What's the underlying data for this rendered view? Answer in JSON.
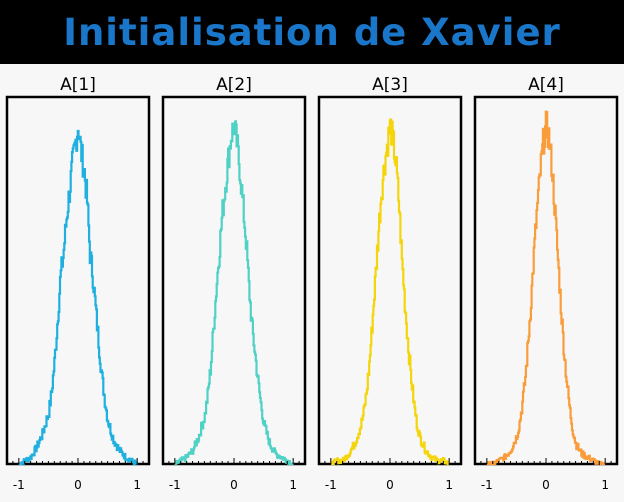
{
  "header": {
    "title": "Initialisation de Xavier"
  },
  "chart_data": [
    {
      "type": "line",
      "title": "A[1]",
      "color": "#1fb0e0",
      "xlim": [
        -1.2,
        1.2
      ],
      "xticks": [
        -1,
        0,
        1
      ],
      "xticklabels": [
        "-1",
        "0",
        "1"
      ],
      "x": [
        -1.0,
        -0.9,
        -0.8,
        -0.7,
        -0.6,
        -0.5,
        -0.45,
        -0.4,
        -0.35,
        -0.3,
        -0.25,
        -0.2,
        -0.15,
        -0.1,
        -0.05,
        0.0,
        0.05,
        0.1,
        0.15,
        0.2,
        0.25,
        0.3,
        0.35,
        0.4,
        0.45,
        0.5,
        0.6,
        0.7,
        0.8,
        0.9,
        1.0
      ],
      "y": [
        0.0,
        0.01,
        0.02,
        0.05,
        0.09,
        0.15,
        0.21,
        0.3,
        0.42,
        0.55,
        0.62,
        0.72,
        0.8,
        0.88,
        0.94,
        1.0,
        0.92,
        0.87,
        0.78,
        0.62,
        0.55,
        0.45,
        0.35,
        0.26,
        0.19,
        0.13,
        0.07,
        0.04,
        0.02,
        0.01,
        0.0
      ]
    },
    {
      "type": "line",
      "title": "A[2]",
      "color": "#4fd1c5",
      "xlim": [
        -1.2,
        1.2
      ],
      "xticks": [
        -1,
        0,
        1
      ],
      "xticklabels": [
        "-1",
        "0",
        "1"
      ],
      "x": [
        -1.0,
        -0.9,
        -0.8,
        -0.7,
        -0.6,
        -0.5,
        -0.45,
        -0.4,
        -0.35,
        -0.3,
        -0.25,
        -0.2,
        -0.15,
        -0.1,
        -0.05,
        0.0,
        0.05,
        0.1,
        0.15,
        0.2,
        0.25,
        0.3,
        0.35,
        0.4,
        0.45,
        0.5,
        0.6,
        0.7,
        0.8,
        0.9,
        1.0
      ],
      "y": [
        0.0,
        0.01,
        0.02,
        0.04,
        0.08,
        0.14,
        0.2,
        0.28,
        0.4,
        0.52,
        0.63,
        0.74,
        0.82,
        0.9,
        0.97,
        1.0,
        0.94,
        0.86,
        0.76,
        0.66,
        0.52,
        0.41,
        0.33,
        0.25,
        0.18,
        0.12,
        0.06,
        0.03,
        0.02,
        0.01,
        0.0
      ]
    },
    {
      "type": "line",
      "title": "A[3]",
      "color": "#f4d50b",
      "xlim": [
        -1.2,
        1.2
      ],
      "xticks": [
        -1,
        0,
        1
      ],
      "xticklabels": [
        "-1",
        "0",
        "1"
      ],
      "x": [
        -1.0,
        -0.9,
        -0.8,
        -0.7,
        -0.6,
        -0.5,
        -0.45,
        -0.4,
        -0.35,
        -0.3,
        -0.25,
        -0.2,
        -0.15,
        -0.1,
        -0.05,
        0.0,
        0.05,
        0.1,
        0.15,
        0.2,
        0.25,
        0.3,
        0.35,
        0.4,
        0.45,
        0.5,
        0.6,
        0.7,
        0.8,
        0.9,
        1.0
      ],
      "y": [
        0.0,
        0.01,
        0.01,
        0.03,
        0.06,
        0.11,
        0.15,
        0.21,
        0.3,
        0.42,
        0.55,
        0.68,
        0.8,
        0.88,
        0.94,
        1.0,
        0.95,
        0.88,
        0.76,
        0.6,
        0.47,
        0.36,
        0.26,
        0.18,
        0.12,
        0.08,
        0.04,
        0.02,
        0.01,
        0.01,
        0.0
      ]
    },
    {
      "type": "line",
      "title": "A[4]",
      "color": "#f99d3b",
      "xlim": [
        -1.2,
        1.2
      ],
      "xticks": [
        -1,
        0,
        1
      ],
      "xticklabels": [
        "-1",
        "0",
        "1"
      ],
      "x": [
        -1.0,
        -0.9,
        -0.8,
        -0.7,
        -0.6,
        -0.5,
        -0.45,
        -0.4,
        -0.35,
        -0.3,
        -0.25,
        -0.2,
        -0.15,
        -0.1,
        -0.05,
        0.0,
        0.05,
        0.1,
        0.15,
        0.2,
        0.25,
        0.3,
        0.35,
        0.4,
        0.45,
        0.5,
        0.6,
        0.7,
        0.8,
        0.9,
        1.0
      ],
      "y": [
        0.0,
        0.0,
        0.01,
        0.02,
        0.04,
        0.08,
        0.12,
        0.18,
        0.26,
        0.37,
        0.5,
        0.64,
        0.76,
        0.86,
        0.95,
        1.0,
        0.96,
        0.87,
        0.74,
        0.6,
        0.46,
        0.34,
        0.24,
        0.16,
        0.1,
        0.06,
        0.03,
        0.02,
        0.01,
        0.0,
        0.0
      ]
    }
  ]
}
